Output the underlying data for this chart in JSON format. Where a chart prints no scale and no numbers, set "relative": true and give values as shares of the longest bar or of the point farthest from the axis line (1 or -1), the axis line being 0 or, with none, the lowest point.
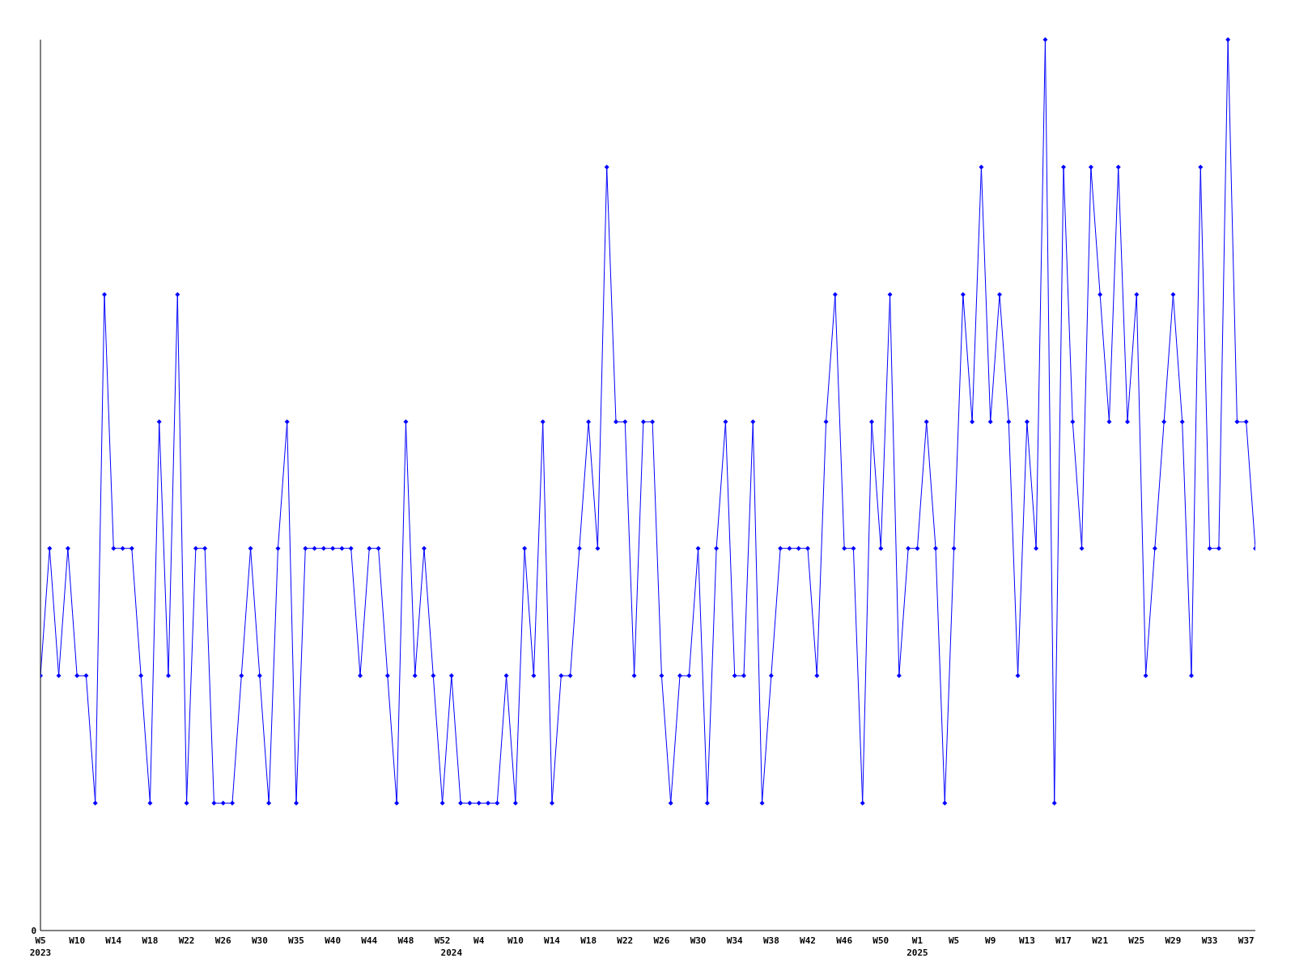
{
  "chart_data": {
    "type": "line",
    "relative": true,
    "annotations": [
      "0"
    ],
    "categories": [
      "W5\n2023",
      null,
      null,
      null,
      "W10",
      null,
      null,
      null,
      "W14",
      null,
      null,
      null,
      "W18",
      null,
      null,
      null,
      "W22",
      null,
      null,
      null,
      "W26",
      null,
      null,
      null,
      "W30",
      null,
      null,
      null,
      "W35",
      null,
      null,
      null,
      "W40",
      null,
      null,
      null,
      "W44",
      null,
      null,
      null,
      "W48",
      null,
      null,
      null,
      "W52",
      "\n2024",
      null,
      null,
      "W4",
      null,
      null,
      null,
      "W10",
      null,
      null,
      null,
      "W14",
      null,
      null,
      null,
      "W18",
      null,
      null,
      null,
      "W22",
      null,
      null,
      null,
      "W26",
      null,
      null,
      null,
      "W30",
      null,
      null,
      null,
      "W34",
      null,
      null,
      null,
      "W38",
      null,
      null,
      null,
      "W42",
      null,
      null,
      null,
      "W46",
      null,
      null,
      null,
      "W50",
      null,
      null,
      null,
      "W1\n2025",
      null,
      null,
      null,
      "W5",
      null,
      null,
      null,
      "W9",
      null,
      null,
      null,
      "W13",
      null,
      null,
      null,
      "W17",
      null,
      null,
      null,
      "W21",
      null,
      null,
      null,
      "W25",
      null,
      null,
      null,
      "W29",
      null,
      null,
      null,
      "W33",
      null,
      null,
      null,
      "W37",
      null
    ],
    "series": [
      {
        "color": "#0000ff",
        "values": [
          0.286,
          0.429,
          0.286,
          0.429,
          0.286,
          0.286,
          0.143,
          0.714,
          0.429,
          0.429,
          0.429,
          0.286,
          0.143,
          0.571,
          0.286,
          0.714,
          0.143,
          0.429,
          0.429,
          0.143,
          0.143,
          0.143,
          0.286,
          0.429,
          0.286,
          0.143,
          0.429,
          0.571,
          0.143,
          0.429,
          0.429,
          0.429,
          0.429,
          0.429,
          0.429,
          0.286,
          0.429,
          0.429,
          0.286,
          0.143,
          0.571,
          0.286,
          0.429,
          0.286,
          0.143,
          0.286,
          0.143,
          0.143,
          0.143,
          0.143,
          0.143,
          0.286,
          0.143,
          0.429,
          0.286,
          0.571,
          0.143,
          0.286,
          0.286,
          0.429,
          0.571,
          0.429,
          0.857,
          0.571,
          0.571,
          0.286,
          0.571,
          0.571,
          0.286,
          0.143,
          0.286,
          0.286,
          0.429,
          0.143,
          0.429,
          0.571,
          0.286,
          0.286,
          0.571,
          0.143,
          0.286,
          0.429,
          0.429,
          0.429,
          0.429,
          0.286,
          0.571,
          0.714,
          0.429,
          0.429,
          0.143,
          0.571,
          0.429,
          0.714,
          0.286,
          0.429,
          0.429,
          0.571,
          0.429,
          0.143,
          0.429,
          0.714,
          0.571,
          0.857,
          0.571,
          0.714,
          0.571,
          0.286,
          0.571,
          0.429,
          1,
          0.143,
          0.857,
          0.571,
          0.429,
          0.857,
          0.714,
          0.571,
          0.857,
          0.571,
          0.714,
          0.286,
          0.429,
          0.571,
          0.714,
          0.571,
          0.286,
          0.857,
          0.429,
          0.429,
          1,
          0.571,
          0.571,
          0.429
        ]
      }
    ],
    "marker": "diamond",
    "grid": false,
    "legend": false
  }
}
